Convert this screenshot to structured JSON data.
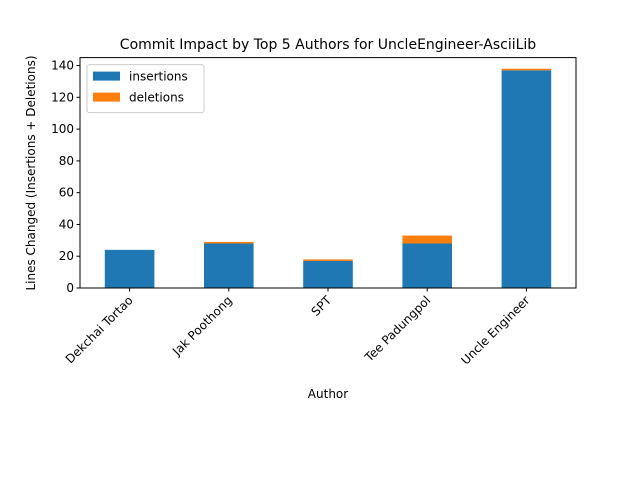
{
  "chart_data": {
    "type": "bar",
    "stacked": true,
    "title": "Commit Impact by Top 5 Authors for UncleEngineer-AsciiLib",
    "xlabel": "Author",
    "ylabel": "Lines Changed (Insertions + Deletions)",
    "categories": [
      "Dekchai Tortao",
      "Jak Poothong",
      "SPT",
      "Tee Padungpol",
      "Uncle Engineer"
    ],
    "series": [
      {
        "name": "insertions",
        "values": [
          24,
          28,
          17,
          28,
          137
        ],
        "color": "#1f77b4"
      },
      {
        "name": "deletions",
        "values": [
          0,
          1,
          1,
          5,
          1
        ],
        "color": "#ff7f0e"
      }
    ],
    "ylim": [
      0,
      145
    ],
    "yticks": [
      0,
      20,
      40,
      60,
      80,
      100,
      120,
      140
    ],
    "grid": false,
    "legend": "top-left"
  }
}
